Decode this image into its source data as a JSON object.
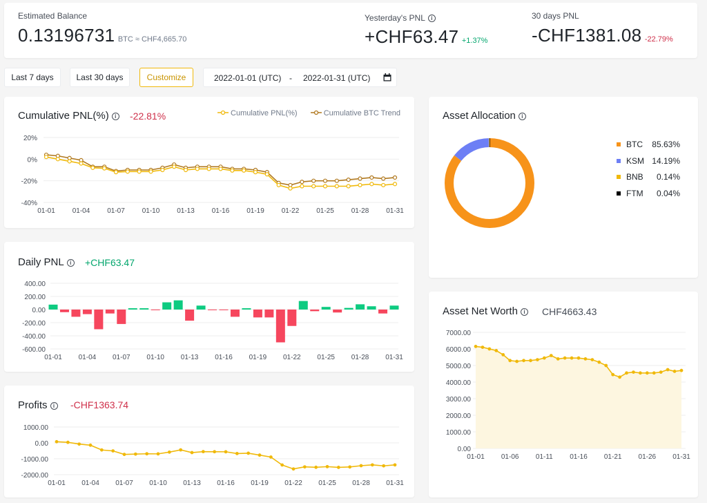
{
  "summary": {
    "estimated_balance_label": "Estimated Balance",
    "estimated_balance_value": "0.13196731",
    "estimated_balance_unit": "BTC ≈ CHF4,665.70",
    "yesterday_pnl_label": "Yesterday's PNL",
    "yesterday_pnl_value": "+CHF63.47",
    "yesterday_pnl_pct": "+1.37%",
    "days30_pnl_label": "30 days PNL",
    "days30_pnl_value": "-CHF1381.08",
    "days30_pnl_pct": "-22.79%"
  },
  "filters": {
    "last7": "Last 7 days",
    "last30": "Last 30 days",
    "customize": "Customize",
    "start_date": "2022-01-01 (UTC)",
    "separator": "-",
    "end_date": "2022-01-31 (UTC)"
  },
  "cards": {
    "cumulative_title": "Cumulative PNL(%)",
    "cumulative_value": "-22.81%",
    "cumulative_legend_1": "Cumulative PNL(%)",
    "cumulative_legend_2": "Cumulative BTC Trend",
    "daily_title": "Daily PNL",
    "daily_value": "+CHF63.47",
    "profits_title": "Profits",
    "profits_value": "-CHF1363.74",
    "allocation_title": "Asset Allocation",
    "networth_title": "Asset Net Worth",
    "networth_value": "CHF4663.43"
  },
  "allocation": [
    {
      "name": "BTC",
      "pct": "85.63%",
      "value": 85.63,
      "color": "#f7931a"
    },
    {
      "name": "KSM",
      "pct": "14.19%",
      "value": 14.19,
      "color": "#6d7ff5"
    },
    {
      "name": "BNB",
      "pct": "0.14%",
      "value": 0.14,
      "color": "#f0b90b"
    },
    {
      "name": "FTM",
      "pct": "0.04%",
      "value": 0.04,
      "color": "#000000"
    }
  ],
  "colors": {
    "yellow": "#f0b90b",
    "brown": "#b0781e",
    "green": "#0ecb81",
    "red": "#f6465d",
    "area": "#fdf6e0"
  },
  "chart_data": [
    {
      "id": "cumulative",
      "type": "line",
      "title": "Cumulative PNL(%)",
      "x": [
        "01-01",
        "01-02",
        "01-03",
        "01-04",
        "01-05",
        "01-06",
        "01-07",
        "01-08",
        "01-09",
        "01-10",
        "01-11",
        "01-12",
        "01-13",
        "01-14",
        "01-15",
        "01-16",
        "01-17",
        "01-18",
        "01-19",
        "01-20",
        "01-21",
        "01-22",
        "01-23",
        "01-24",
        "01-25",
        "01-26",
        "01-27",
        "01-28",
        "01-29",
        "01-30",
        "01-31"
      ],
      "xticks": [
        "01-01",
        "01-04",
        "01-07",
        "01-10",
        "01-13",
        "01-16",
        "01-19",
        "01-22",
        "01-25",
        "01-28",
        "01-31"
      ],
      "yticks": [
        "20%",
        "0%",
        "-20%",
        "-40%"
      ],
      "ylim": [
        -40,
        20
      ],
      "series": [
        {
          "name": "Cumulative PNL(%)",
          "values": [
            2,
            0,
            -2,
            -4,
            -8,
            -8.5,
            -12,
            -11.5,
            -11.5,
            -11.5,
            -10,
            -7,
            -10,
            -9,
            -9,
            -9,
            -10.5,
            -10.5,
            -12,
            -14,
            -24,
            -27,
            -25,
            -25,
            -25,
            -25,
            -25,
            -24,
            -23,
            -24,
            -23
          ]
        },
        {
          "name": "Cumulative BTC Trend",
          "values": [
            4,
            3,
            1,
            -1,
            -7,
            -7,
            -11,
            -10,
            -10,
            -10,
            -8,
            -5,
            -8,
            -7,
            -7,
            -7,
            -9,
            -9,
            -10,
            -12,
            -22,
            -24,
            -21,
            -20,
            -20,
            -20,
            -19,
            -18,
            -17,
            -18,
            -17
          ]
        }
      ]
    },
    {
      "id": "daily",
      "type": "bar",
      "title": "Daily PNL",
      "x": [
        "01-01",
        "01-02",
        "01-03",
        "01-04",
        "01-05",
        "01-06",
        "01-07",
        "01-08",
        "01-09",
        "01-10",
        "01-11",
        "01-12",
        "01-13",
        "01-14",
        "01-15",
        "01-16",
        "01-17",
        "01-18",
        "01-19",
        "01-20",
        "01-21",
        "01-22",
        "01-23",
        "01-24",
        "01-25",
        "01-26",
        "01-27",
        "01-28",
        "01-29",
        "01-30",
        "01-31"
      ],
      "xticks": [
        "01-01",
        "01-04",
        "01-07",
        "01-10",
        "01-13",
        "01-16",
        "01-19",
        "01-22",
        "01-25",
        "01-28",
        "01-31"
      ],
      "yticks": [
        "400.00",
        "200.00",
        "0.00",
        "-200.00",
        "-400.00",
        "-600.00"
      ],
      "ylim": [
        -600,
        400
      ],
      "values": [
        75,
        -40,
        -110,
        -70,
        -300,
        -60,
        -220,
        20,
        20,
        -5,
        110,
        140,
        -170,
        60,
        -5,
        -5,
        -110,
        20,
        -120,
        -120,
        -500,
        -250,
        130,
        -25,
        40,
        -45,
        25,
        80,
        50,
        -60,
        60
      ]
    },
    {
      "id": "profits",
      "type": "line",
      "title": "Profits",
      "x": [
        "01-01",
        "01-02",
        "01-03",
        "01-04",
        "01-05",
        "01-06",
        "01-07",
        "01-08",
        "01-09",
        "01-10",
        "01-11",
        "01-12",
        "01-13",
        "01-14",
        "01-15",
        "01-16",
        "01-17",
        "01-18",
        "01-19",
        "01-20",
        "01-21",
        "01-22",
        "01-23",
        "01-24",
        "01-25",
        "01-26",
        "01-27",
        "01-28",
        "01-29",
        "01-30",
        "01-31"
      ],
      "xticks": [
        "01-01",
        "01-04",
        "01-07",
        "01-10",
        "01-13",
        "01-16",
        "01-19",
        "01-22",
        "01-25",
        "01-28",
        "01-31"
      ],
      "yticks": [
        "1000.00",
        "0.00",
        "-1000.00",
        "-2000.00"
      ],
      "ylim": [
        -2000,
        1000
      ],
      "values": [
        75,
        35,
        -75,
        -145,
        -445,
        -505,
        -725,
        -705,
        -685,
        -690,
        -580,
        -440,
        -610,
        -550,
        -555,
        -560,
        -670,
        -650,
        -770,
        -890,
        -1390,
        -1640,
        -1510,
        -1535,
        -1495,
        -1540,
        -1515,
        -1435,
        -1385,
        -1445,
        -1385
      ]
    },
    {
      "id": "networth",
      "type": "area",
      "title": "Asset Net Worth",
      "x": [
        "01-01",
        "01-02",
        "01-03",
        "01-04",
        "01-05",
        "01-06",
        "01-07",
        "01-08",
        "01-09",
        "01-10",
        "01-11",
        "01-12",
        "01-13",
        "01-14",
        "01-15",
        "01-16",
        "01-17",
        "01-18",
        "01-19",
        "01-20",
        "01-21",
        "01-22",
        "01-23",
        "01-24",
        "01-25",
        "01-26",
        "01-27",
        "01-28",
        "01-29",
        "01-30",
        "01-31"
      ],
      "xticks": [
        "01-01",
        "01-06",
        "01-11",
        "01-16",
        "01-21",
        "01-26",
        "01-31"
      ],
      "yticks": [
        "7000.00",
        "6000.00",
        "5000.00",
        "4000.00",
        "3000.00",
        "2000.00",
        "1000.00",
        "0.00"
      ],
      "ylim": [
        0,
        7000
      ],
      "values": [
        6150,
        6100,
        6000,
        5900,
        5650,
        5300,
        5250,
        5300,
        5300,
        5350,
        5450,
        5600,
        5400,
        5450,
        5450,
        5450,
        5400,
        5350,
        5200,
        5000,
        4450,
        4300,
        4550,
        4600,
        4550,
        4550,
        4550,
        4600,
        4750,
        4650,
        4700
      ]
    }
  ]
}
